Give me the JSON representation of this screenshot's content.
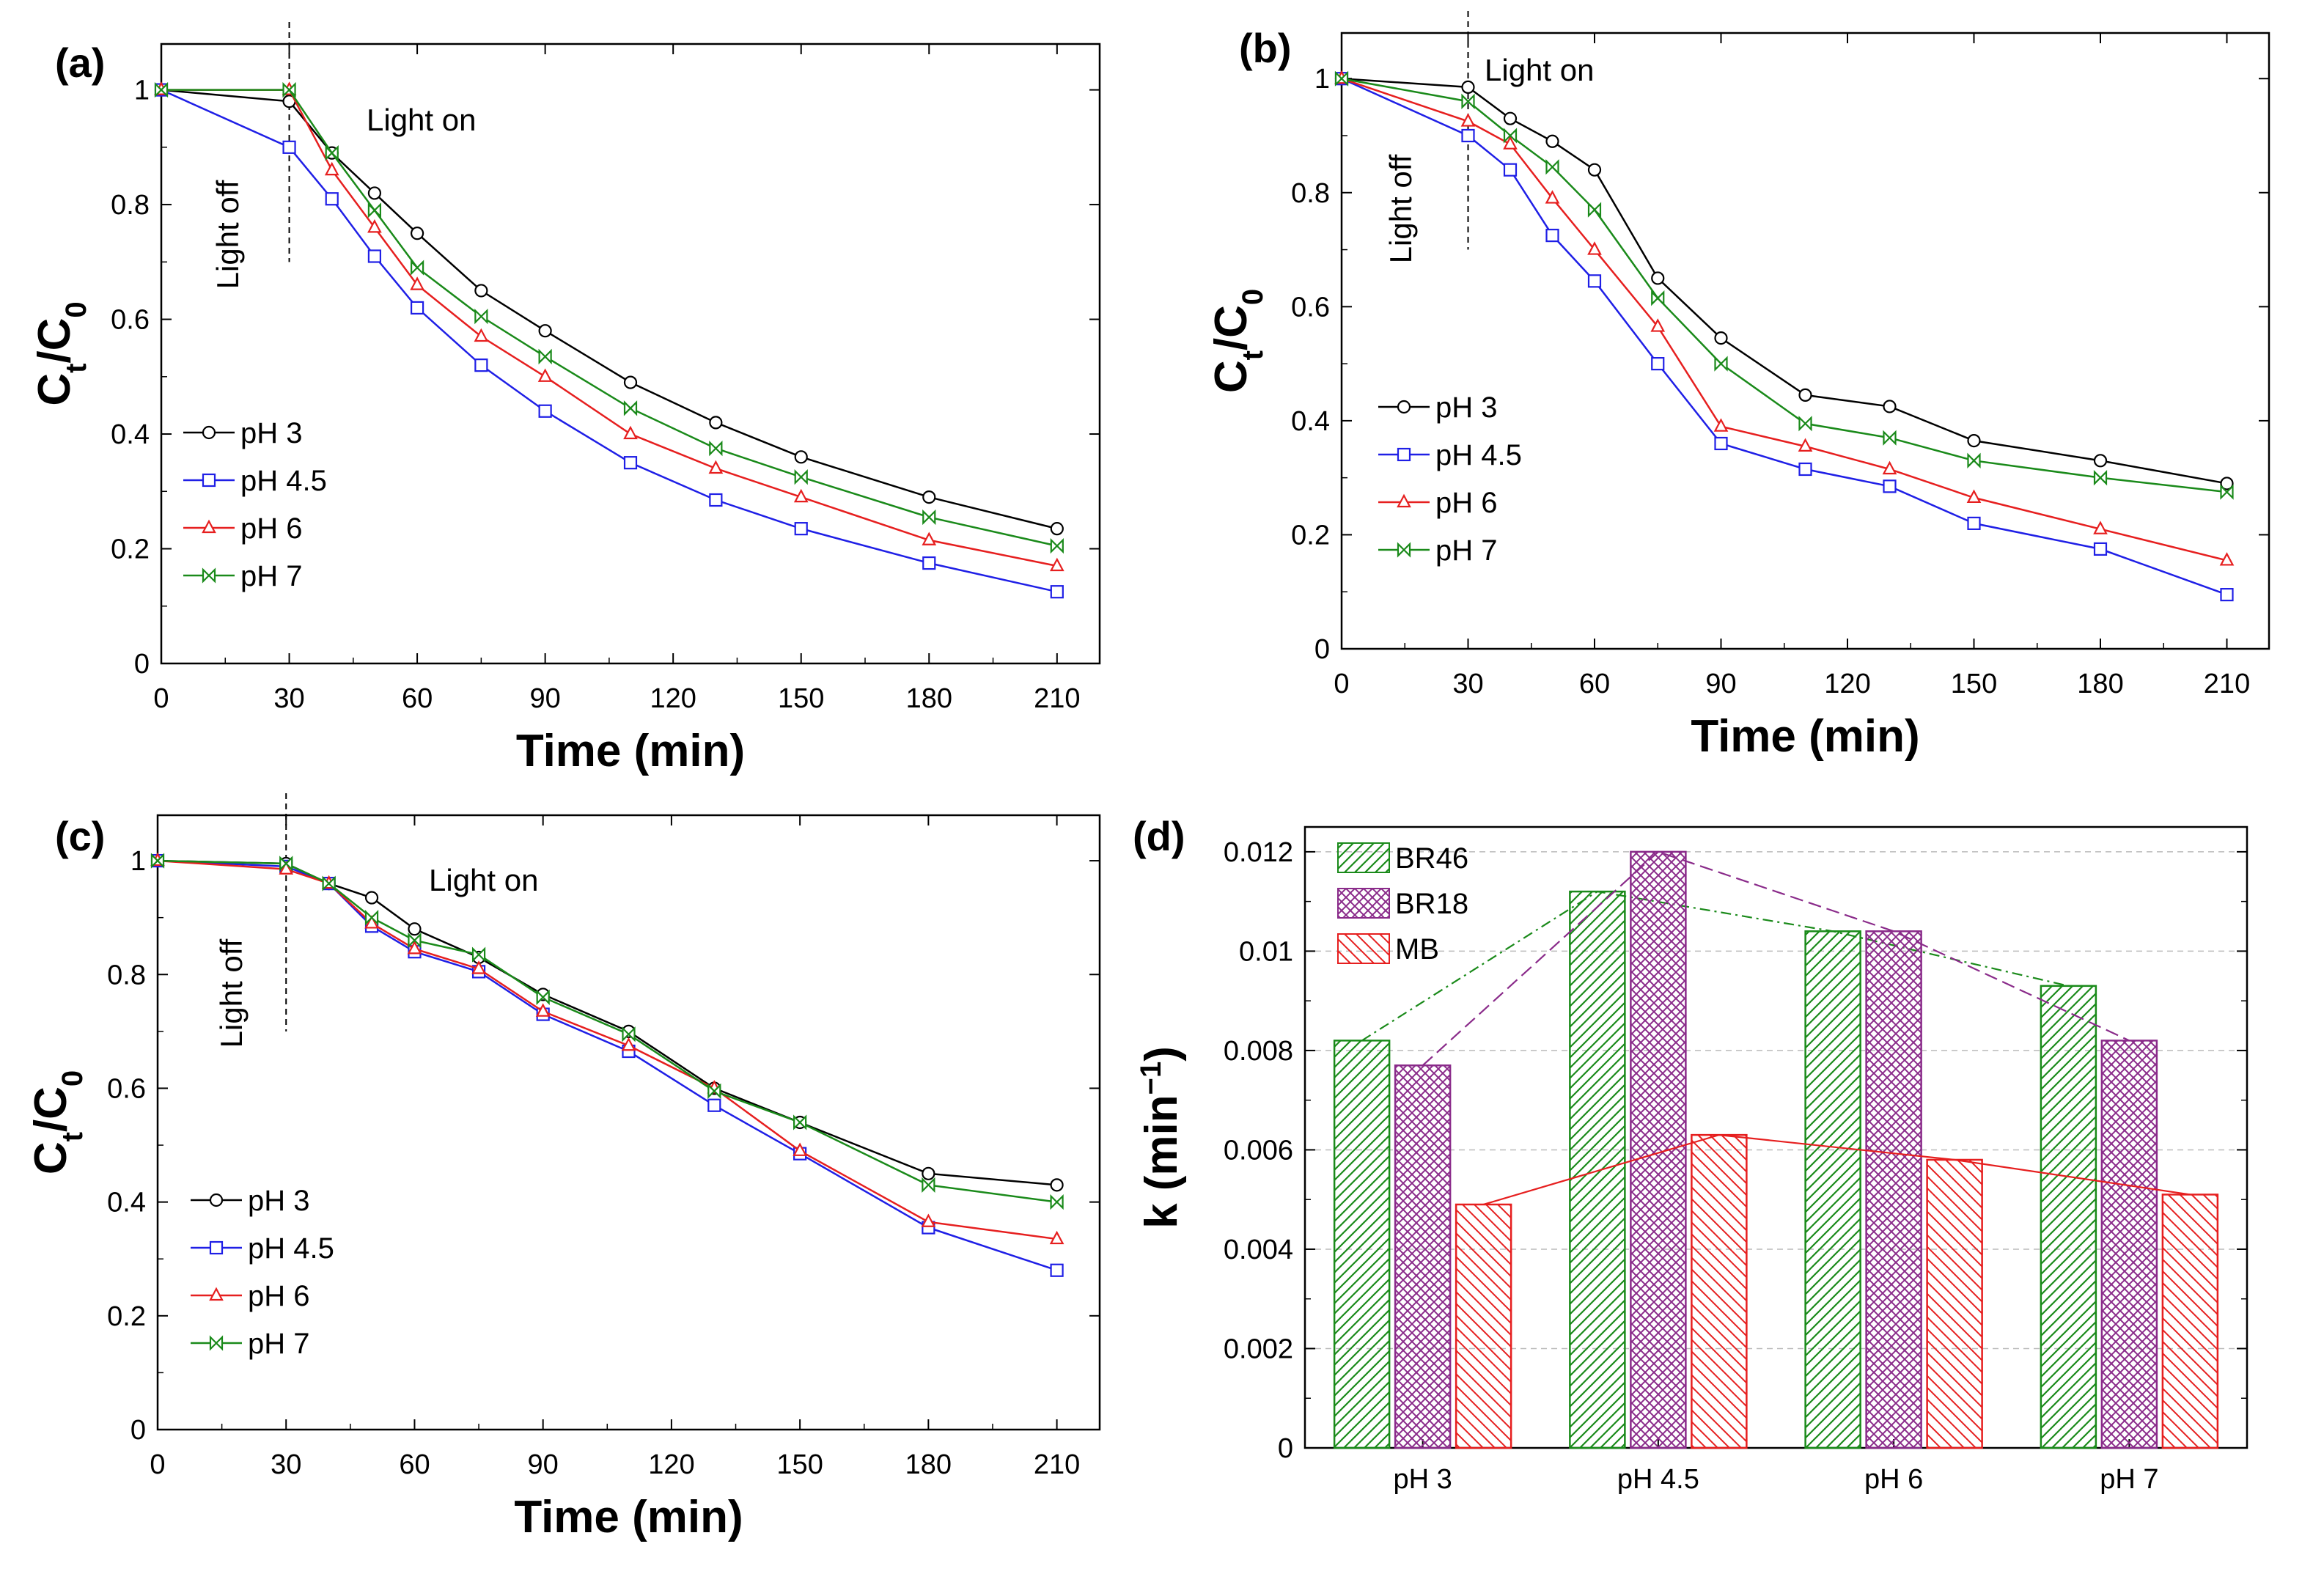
{
  "figure": {
    "background": "#ffffff"
  },
  "chart_data": [
    {
      "id": "a",
      "panel_label": "(a)",
      "type": "line",
      "xlabel": "Time (min)",
      "ylabel": "Ct/C0",
      "ylabel_main": "C",
      "ylabel_sub1": "t",
      "ylabel_sep": "/C",
      "ylabel_sub2": "0",
      "xlim": [
        0,
        220
      ],
      "ylim": [
        0,
        1.08
      ],
      "xticks": [
        0,
        30,
        60,
        90,
        120,
        150,
        180,
        210
      ],
      "yticks": [
        0,
        0.2,
        0.4,
        0.6,
        0.8,
        1
      ],
      "ytick_labels": [
        "0",
        "0.2",
        "0.4",
        "0.6",
        "0.8",
        "1"
      ],
      "annotations": {
        "light_on": "Light on",
        "light_off": "Light off"
      },
      "light_switch_time": 30,
      "x": [
        0,
        30,
        40,
        50,
        60,
        75,
        90,
        110,
        130,
        150,
        180,
        210
      ],
      "series": [
        {
          "name": "pH 3",
          "marker": "circle",
          "color": "#000000",
          "values": [
            1,
            0.98,
            0.89,
            0.82,
            0.75,
            0.65,
            0.58,
            0.49,
            0.42,
            0.36,
            0.29,
            0.235
          ]
        },
        {
          "name": "pH 4.5",
          "marker": "square",
          "color": "#1f1fe6",
          "values": [
            1,
            0.9,
            0.81,
            0.71,
            0.62,
            0.52,
            0.44,
            0.35,
            0.285,
            0.235,
            0.175,
            0.125
          ]
        },
        {
          "name": "pH 6",
          "marker": "triangle",
          "color": "#e61f1f",
          "values": [
            1,
            1.0,
            0.86,
            0.76,
            0.66,
            0.57,
            0.5,
            0.4,
            0.34,
            0.29,
            0.215,
            0.17
          ]
        },
        {
          "name": "pH 7",
          "marker": "bowtie",
          "color": "#1a8a1a",
          "values": [
            1,
            1.0,
            0.89,
            0.79,
            0.69,
            0.605,
            0.535,
            0.445,
            0.375,
            0.325,
            0.255,
            0.205
          ]
        }
      ]
    },
    {
      "id": "b",
      "panel_label": "(b)",
      "type": "line",
      "xlabel": "Time (min)",
      "ylabel": "Ct/C0",
      "ylabel_main": "C",
      "ylabel_sub1": "t",
      "ylabel_sep": "/C",
      "ylabel_sub2": "0",
      "xlim": [
        0,
        220
      ],
      "ylim": [
        0,
        1.08
      ],
      "xticks": [
        0,
        30,
        60,
        90,
        120,
        150,
        180,
        210
      ],
      "yticks": [
        0,
        0.2,
        0.4,
        0.6,
        0.8,
        1
      ],
      "ytick_labels": [
        "0",
        "0.2",
        "0.4",
        "0.6",
        "0.8",
        "1"
      ],
      "annotations": {
        "light_on": "Light on",
        "light_off": "Light off"
      },
      "light_switch_time": 30,
      "x": [
        0,
        30,
        40,
        50,
        60,
        75,
        90,
        110,
        130,
        150,
        180,
        210
      ],
      "series": [
        {
          "name": "pH 3",
          "marker": "circle",
          "color": "#000000",
          "values": [
            1,
            0.985,
            0.93,
            0.89,
            0.84,
            0.65,
            0.545,
            0.445,
            0.425,
            0.365,
            0.33,
            0.29
          ]
        },
        {
          "name": "pH 4.5",
          "marker": "square",
          "color": "#1f1fe6",
          "values": [
            1,
            0.9,
            0.84,
            0.725,
            0.645,
            0.5,
            0.36,
            0.315,
            0.285,
            0.22,
            0.175,
            0.095
          ]
        },
        {
          "name": "pH 6",
          "marker": "triangle",
          "color": "#e61f1f",
          "values": [
            1,
            0.925,
            0.885,
            0.79,
            0.7,
            0.565,
            0.39,
            0.355,
            0.315,
            0.265,
            0.21,
            0.155
          ]
        },
        {
          "name": "pH 7",
          "marker": "bowtie",
          "color": "#1a8a1a",
          "values": [
            1,
            0.96,
            0.9,
            0.845,
            0.77,
            0.615,
            0.5,
            0.395,
            0.37,
            0.33,
            0.3,
            0.275
          ]
        }
      ]
    },
    {
      "id": "c",
      "panel_label": "(c)",
      "type": "line",
      "xlabel": "Time (min)",
      "ylabel": "Ct/C0",
      "ylabel_main": "C",
      "ylabel_sub1": "t",
      "ylabel_sep": "/C",
      "ylabel_sub2": "0",
      "xlim": [
        0,
        220
      ],
      "ylim": [
        0,
        1.08
      ],
      "xticks": [
        0,
        30,
        60,
        90,
        120,
        150,
        180,
        210
      ],
      "yticks": [
        0,
        0.2,
        0.4,
        0.6,
        0.8,
        1
      ],
      "ytick_labels": [
        "0",
        "0.2",
        "0.4",
        "0.6",
        "0.8",
        "1"
      ],
      "annotations": {
        "light_on": "Light on",
        "light_off": "Light off"
      },
      "light_switch_time": 30,
      "x": [
        0,
        30,
        40,
        50,
        60,
        75,
        90,
        110,
        130,
        150,
        180,
        210
      ],
      "series": [
        {
          "name": "pH 3",
          "marker": "circle",
          "color": "#000000",
          "values": [
            1,
            0.995,
            0.96,
            0.935,
            0.88,
            0.83,
            0.765,
            0.7,
            0.6,
            0.54,
            0.45,
            0.43
          ]
        },
        {
          "name": "pH 4.5",
          "marker": "square",
          "color": "#1f1fe6",
          "values": [
            1,
            0.99,
            0.96,
            0.885,
            0.84,
            0.805,
            0.73,
            0.665,
            0.57,
            0.485,
            0.355,
            0.28
          ]
        },
        {
          "name": "pH 6",
          "marker": "triangle",
          "color": "#e61f1f",
          "values": [
            1,
            0.985,
            0.96,
            0.89,
            0.845,
            0.81,
            0.735,
            0.675,
            0.6,
            0.49,
            0.365,
            0.335
          ]
        },
        {
          "name": "pH 7",
          "marker": "bowtie",
          "color": "#1a8a1a",
          "values": [
            1,
            0.995,
            0.96,
            0.9,
            0.86,
            0.835,
            0.76,
            0.695,
            0.595,
            0.54,
            0.43,
            0.4
          ]
        }
      ]
    },
    {
      "id": "d",
      "panel_label": "(d)",
      "type": "bar",
      "ylabel": "k (min−1)",
      "ylabel_main": "k (min",
      "ylabel_sup": "−1",
      "ylabel_end": ")",
      "categories": [
        "pH 3",
        "pH 4.5",
        "pH 6",
        "pH 7"
      ],
      "ylim": [
        0,
        0.0125
      ],
      "yticks": [
        0,
        0.002,
        0.004,
        0.006,
        0.008,
        0.01,
        0.012
      ],
      "ytick_labels": [
        "0",
        "0.002",
        "0.004",
        "0.006",
        "0.008",
        "0.01",
        "0.012"
      ],
      "series": [
        {
          "name": "BR46",
          "color": "#1a8a1a",
          "hatch": "diagonal",
          "values": [
            0.0082,
            0.0112,
            0.0104,
            0.0093
          ]
        },
        {
          "name": "BR18",
          "color": "#8a2b8a",
          "hatch": "crosshatch",
          "values": [
            0.0077,
            0.012,
            0.0104,
            0.0082
          ]
        },
        {
          "name": "MB",
          "color": "#e61f1f",
          "hatch": "anti-diagonal",
          "values": [
            0.0049,
            0.0063,
            0.0058,
            0.0051
          ]
        }
      ]
    }
  ]
}
